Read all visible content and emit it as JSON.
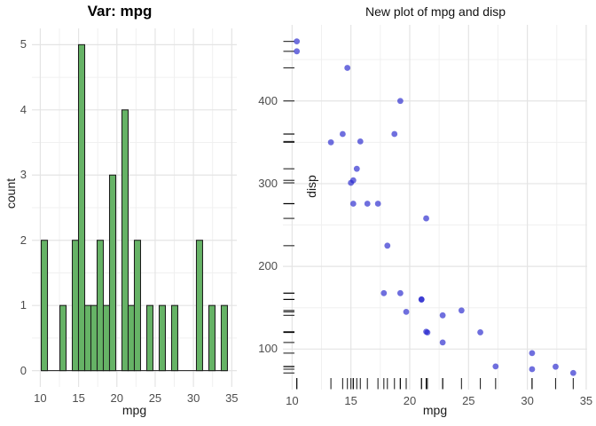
{
  "figure": {
    "background": "#FFFFFF"
  },
  "text_colors": {
    "tick_label": "#4D4D4D",
    "axis_title": "#1A1A1A",
    "title": "#000000"
  },
  "chart_data": [
    {
      "type": "bar",
      "title": "Var: mpg",
      "xlabel": "mpg",
      "ylabel": "count",
      "x_ticks": [
        10,
        15,
        20,
        25,
        30,
        35
      ],
      "y_ticks": [
        0,
        1,
        2,
        3,
        4,
        5
      ],
      "xlim": [
        8.91,
        35.66
      ],
      "ylim": [
        -0.25,
        5.25
      ],
      "grid": "major+minor",
      "legend": "none",
      "bin_start": 10.129,
      "bin_width": 0.8103,
      "counts": [
        2,
        0,
        0,
        1,
        0,
        2,
        5,
        1,
        1,
        2,
        1,
        3,
        0,
        4,
        1,
        2,
        0,
        1,
        0,
        1,
        0,
        1,
        0,
        0,
        0,
        2,
        0,
        1,
        0,
        1
      ],
      "bar_fill": "#66B366",
      "bar_stroke": "#1C1C1C",
      "grid_major_color": "#E4E4E4",
      "grid_minor_color": "#F0F0F0"
    },
    {
      "type": "scatter",
      "title": "New plot of mpg and disp",
      "xlabel": "mpg",
      "ylabel": "disp",
      "x_ticks": [
        10,
        15,
        20,
        25,
        30,
        35
      ],
      "y_ticks": [
        100,
        200,
        300,
        400
      ],
      "xlim": [
        9.22,
        35.08
      ],
      "ylim": [
        51,
        492
      ],
      "grid": "major+minor",
      "legend": "none",
      "points": [
        [
          21.0,
          160.0
        ],
        [
          21.0,
          160.0
        ],
        [
          22.8,
          108.0
        ],
        [
          21.4,
          258.0
        ],
        [
          18.7,
          360.0
        ],
        [
          18.1,
          225.0
        ],
        [
          14.3,
          360.0
        ],
        [
          24.4,
          146.7
        ],
        [
          22.8,
          140.8
        ],
        [
          19.2,
          167.6
        ],
        [
          17.8,
          167.6
        ],
        [
          16.4,
          275.8
        ],
        [
          17.3,
          275.8
        ],
        [
          15.2,
          275.8
        ],
        [
          10.4,
          472.0
        ],
        [
          10.4,
          460.0
        ],
        [
          14.7,
          440.0
        ],
        [
          32.4,
          78.7
        ],
        [
          30.4,
          75.7
        ],
        [
          33.9,
          71.1
        ],
        [
          21.5,
          120.1
        ],
        [
          15.5,
          318.0
        ],
        [
          15.2,
          304.0
        ],
        [
          13.3,
          350.0
        ],
        [
          19.2,
          400.0
        ],
        [
          27.3,
          79.0
        ],
        [
          26.0,
          120.3
        ],
        [
          30.4,
          95.1
        ],
        [
          15.8,
          351.0
        ],
        [
          19.7,
          145.0
        ],
        [
          15.0,
          301.0
        ],
        [
          21.4,
          121.0
        ]
      ],
      "point_color": "#2222CC",
      "point_opacity": 0.65,
      "rug": true,
      "rug_color": "#000000",
      "grid_major_color": "#E4E4E4",
      "grid_minor_color": "#F0F0F0"
    }
  ]
}
